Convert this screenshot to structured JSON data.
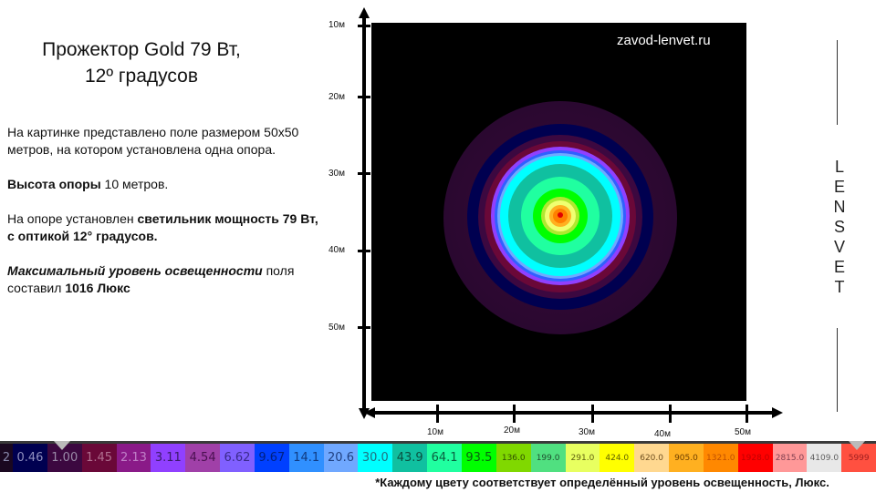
{
  "title": {
    "line1": "Прожектор Gold 79 Вт,",
    "line2": "12º градусов"
  },
  "description": {
    "p1": "На картинке представлено поле размером 50х50 метров, на котором установлена одна опора.",
    "p2_bold": "Высота опоры",
    "p2_rest": " 10 метров.",
    "p3_pre": "На опоре установлен ",
    "p3_bold": "светильник мощность 79 Вт, с оптикой 12° градусов.",
    "p4_italic": "Максимальный уровень освещенности",
    "p4_mid": " поля  составил ",
    "p4_bold": "1016 Люкс"
  },
  "plot": {
    "watermark": "zavod-lenvet.ru",
    "y_axis_labels": [
      "10м",
      "20м",
      "30м",
      "40м",
      "50м"
    ],
    "x_axis_labels": [
      "10м",
      "20м",
      "30м",
      "40м",
      "50м"
    ]
  },
  "brand": {
    "letters": [
      "L",
      "E",
      "N",
      "S",
      "V",
      "E",
      "T"
    ]
  },
  "legend": {
    "cells": [
      {
        "label": "2",
        "bg": "#1a0820",
        "fg": "#8888aa"
      },
      {
        "label": "0.46",
        "bg": "#000050",
        "fg": "#9090c0"
      },
      {
        "label": "1.00",
        "bg": "#3c0840",
        "fg": "#9a8aa8"
      },
      {
        "label": "1.45",
        "bg": "#6a0838",
        "fg": "#b07090"
      },
      {
        "label": "2.13",
        "bg": "#8a1a88",
        "fg": "#c080c8"
      },
      {
        "label": "3.11",
        "bg": "#9040ff",
        "fg": "#3a1a6a"
      },
      {
        "label": "4.54",
        "bg": "#a040a8",
        "fg": "#4a1050"
      },
      {
        "label": "6.62",
        "bg": "#8060ff",
        "fg": "#3a2a8a"
      },
      {
        "label": "9.67",
        "bg": "#0040ff",
        "fg": "#002080"
      },
      {
        "label": "14.1",
        "bg": "#3090ff",
        "fg": "#103a80"
      },
      {
        "label": "20.6",
        "bg": "#70a8ff",
        "fg": "#204080"
      },
      {
        "label": "30.0",
        "bg": "#00ffff",
        "fg": "#207080"
      },
      {
        "label": "43.9",
        "bg": "#10c0a0",
        "fg": "#0a5040"
      },
      {
        "label": "64.1",
        "bg": "#20ffa0",
        "fg": "#0a6040"
      },
      {
        "label": "93.5",
        "bg": "#00ff00",
        "fg": "#0a6010"
      },
      {
        "label": "136.0",
        "bg": "#80d800",
        "fg": "#305000",
        "small": true
      },
      {
        "label": "199.0",
        "bg": "#50e080",
        "fg": "#205030",
        "small": true
      },
      {
        "label": "291.0",
        "bg": "#e8ff60",
        "fg": "#606010",
        "small": true
      },
      {
        "label": "424.0",
        "bg": "#ffff00",
        "fg": "#606000",
        "small": true
      },
      {
        "label": "620.0",
        "bg": "#ffd890",
        "fg": "#705020",
        "small": true
      },
      {
        "label": "905.0",
        "bg": "#ffb020",
        "fg": "#704000",
        "small": true
      },
      {
        "label": "1321.0",
        "bg": "#ff8800",
        "fg": "#c05000",
        "small": true
      },
      {
        "label": "1928.0",
        "bg": "#ff0000",
        "fg": "#c00000",
        "small": true
      },
      {
        "label": "2815.0",
        "bg": "#ff9898",
        "fg": "#804050",
        "small": true
      },
      {
        "label": "4109.0",
        "bg": "#e8e8e8",
        "fg": "#606060",
        "small": true
      },
      {
        "label": "5999",
        "bg": "#ff5040",
        "fg": "#a02020",
        "small": true
      }
    ],
    "footnote": "*Каждому цвету соответствует  определённый уровень освещенность, Люкс."
  },
  "chart_data": {
    "type": "heatmap",
    "title": "Прожектор Gold 79 Вт, 12º градусов",
    "field_size_m": [
      50,
      50
    ],
    "pole_height_m": 10,
    "max_illuminance_lux": 1016,
    "x_ticks": [
      "10м",
      "20м",
      "30м",
      "40м",
      "50м"
    ],
    "y_ticks": [
      "10м",
      "20м",
      "30м",
      "40м",
      "50м"
    ],
    "center_m": [
      25,
      25
    ],
    "scale_lux": [
      0.46,
      1.0,
      1.45,
      2.13,
      3.11,
      4.54,
      6.62,
      9.67,
      14.1,
      20.6,
      30.0,
      43.9,
      64.1,
      93.5,
      136.0,
      199.0,
      291.0,
      424.0,
      620.0,
      905.0,
      1321.0,
      1928.0,
      2815.0,
      4109.0,
      5999
    ],
    "rings_outer_to_inner": [
      "#2a0830",
      "#000050",
      "#3c0840",
      "#6a0838",
      "#9040ff",
      "#3090ff",
      "#00ffff",
      "#10c0a0",
      "#20ffa0",
      "#00ff00",
      "#80d800",
      "#e8ff60",
      "#ffb020",
      "#ff8800",
      "#ff0000"
    ]
  }
}
